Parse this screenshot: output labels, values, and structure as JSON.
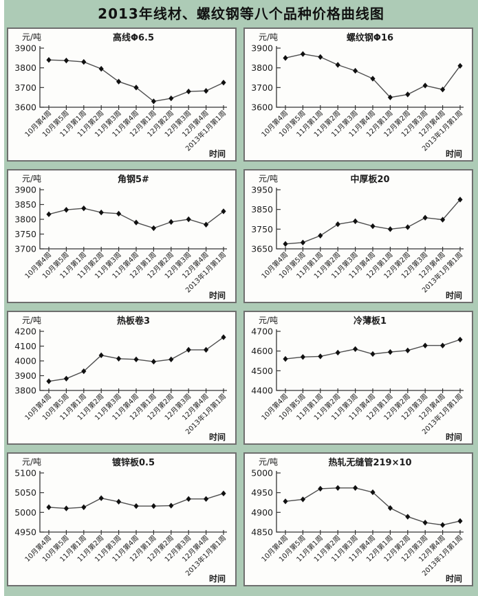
{
  "page": {
    "title": "2013年线材、螺纹钢等八个品种价格曲线图"
  },
  "colors": {
    "page_background": "#adcbb6",
    "panel_background": "#fdfdfb",
    "panel_border": "#6e6e6e",
    "axis": "#333333",
    "line": "#4d4d4d",
    "marker": "#111111",
    "text": "#1c1c1c"
  },
  "axes": {
    "y_unit": "元/吨",
    "x_label": "时间"
  },
  "chart_data": [
    {
      "type": "line",
      "title": "高线Φ6.5",
      "ylabel": "元/吨",
      "xlabel": "时间",
      "categories": [
        "10月第4周",
        "10月第5周",
        "11月第1周",
        "11月第2周",
        "11月第3周",
        "11月第4周",
        "12月第1周",
        "12月第2周",
        "12月第3周",
        "12月第4周",
        "2013年1月第1周"
      ],
      "values": [
        3840,
        3837,
        3830,
        3795,
        3730,
        3700,
        3630,
        3645,
        3680,
        3683,
        3725
      ],
      "ylim": [
        3600,
        3900
      ],
      "yticks": [
        3600,
        3700,
        3800,
        3900
      ],
      "legend": "none",
      "grid": false
    },
    {
      "type": "line",
      "title": "螺纹钢Φ16",
      "ylabel": "元/吨",
      "xlabel": "时间",
      "categories": [
        "10月第4周",
        "10月第5周",
        "11月第1周",
        "11月第2周",
        "11月第3周",
        "11月第4周",
        "12月第1周",
        "12月第2周",
        "12月第3周",
        "12月第4周",
        "2013年1月第1周"
      ],
      "values": [
        3850,
        3870,
        3855,
        3815,
        3785,
        3745,
        3650,
        3665,
        3710,
        3690,
        3810
      ],
      "ylim": [
        3600,
        3900
      ],
      "yticks": [
        3600,
        3700,
        3800,
        3900
      ],
      "legend": "none",
      "grid": false
    },
    {
      "type": "line",
      "title": "角钢5#",
      "ylabel": "元/吨",
      "xlabel": "时间",
      "categories": [
        "10月第4周",
        "10月第5周",
        "11月第1周",
        "11月第2周",
        "11月第3周",
        "11月第4周",
        "12月第1周",
        "12月第2周",
        "12月第3周",
        "12月第4周",
        "2013年1月第1周"
      ],
      "values": [
        3817,
        3832,
        3837,
        3823,
        3819,
        3789,
        3770,
        3791,
        3800,
        3782,
        3827
      ],
      "ylim": [
        3700,
        3900
      ],
      "yticks": [
        3700,
        3750,
        3800,
        3850,
        3900
      ],
      "legend": "none",
      "grid": false
    },
    {
      "type": "line",
      "title": "中厚板20",
      "ylabel": "元/吨",
      "xlabel": "时间",
      "categories": [
        "10月第4周",
        "10月第5周",
        "11月第1周",
        "11月第2周",
        "11月第3周",
        "11月第4周",
        "12月第1周",
        "12月第2周",
        "12月第3周",
        "12月第4周",
        "2013年1月第1周"
      ],
      "values": [
        3675,
        3682,
        3717,
        3775,
        3790,
        3765,
        3750,
        3760,
        3808,
        3798,
        3900
      ],
      "ylim": [
        3650,
        3950
      ],
      "yticks": [
        3650,
        3750,
        3850,
        3950
      ],
      "legend": "none",
      "grid": false
    },
    {
      "type": "line",
      "title": "热板卷3",
      "ylabel": "元/吨",
      "xlabel": "时间",
      "categories": [
        "10月第4周",
        "10月第5周",
        "11月第1周",
        "11月第2周",
        "11月第3周",
        "11月第4周",
        "12月第1周",
        "12月第2周",
        "12月第3周",
        "12月第4周",
        "2013年1月第1周"
      ],
      "values": [
        3862,
        3880,
        3930,
        4038,
        4015,
        4010,
        3995,
        4010,
        4075,
        4075,
        4160
      ],
      "ylim": [
        3800,
        4200
      ],
      "yticks": [
        3800,
        3900,
        4000,
        4100,
        4200
      ],
      "legend": "none",
      "grid": false
    },
    {
      "type": "line",
      "title": "冷薄板1",
      "ylabel": "元/吨",
      "xlabel": "时间",
      "categories": [
        "10月第4周",
        "10月第5周",
        "11月第1周",
        "11月第2周",
        "11月第3周",
        "11月第4周",
        "12月第1周",
        "12月第2周",
        "12月第3周",
        "12月第4周",
        "2013年1月第1周"
      ],
      "values": [
        4560,
        4570,
        4573,
        4592,
        4610,
        4585,
        4595,
        4603,
        4628,
        4628,
        4658
      ],
      "ylim": [
        4400,
        4700
      ],
      "yticks": [
        4400,
        4500,
        4600,
        4700
      ],
      "legend": "none",
      "grid": false
    },
    {
      "type": "line",
      "title": "镀锌板0.5",
      "ylabel": "元/吨",
      "xlabel": "时间",
      "categories": [
        "10月第4周",
        "10月第5周",
        "11月第1周",
        "11月第2周",
        "11月第3周",
        "11月第4周",
        "12月第1周",
        "12月第2周",
        "12月第3周",
        "12月第4周",
        "2013年1月第1周"
      ],
      "values": [
        5013,
        5010,
        5013,
        5036,
        5027,
        5016,
        5016,
        5017,
        5034,
        5034,
        5048
      ],
      "ylim": [
        4950,
        5100
      ],
      "yticks": [
        4950,
        5000,
        5050,
        5100
      ],
      "legend": "none",
      "grid": false
    },
    {
      "type": "line",
      "title": "热轧无缝管219×10",
      "ylabel": "元/吨",
      "xlabel": "时间",
      "categories": [
        "10月第4周",
        "10月第5周",
        "11月第1周",
        "11月第2周",
        "11月第3周",
        "11月第4周",
        "12月第1周",
        "12月第2周",
        "12月第3周",
        "12月第4周",
        "2013年1月第1周"
      ],
      "values": [
        4928,
        4933,
        4960,
        4962,
        4962,
        4951,
        4911,
        4889,
        4874,
        4868,
        4878
      ],
      "ylim": [
        4850,
        5000
      ],
      "yticks": [
        4850,
        4900,
        4950,
        5000
      ],
      "legend": "none",
      "grid": false
    }
  ]
}
